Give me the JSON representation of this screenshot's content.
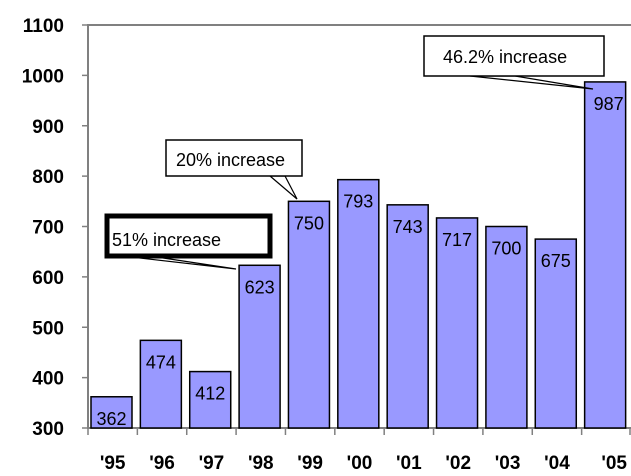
{
  "chart_data": {
    "type": "bar",
    "categories": [
      "'95",
      "'96",
      "'97",
      "'98",
      "'99",
      "'00",
      "'01",
      "'02",
      "'03",
      "'04",
      "'05"
    ],
    "values": [
      362,
      474,
      412,
      623,
      750,
      793,
      743,
      717,
      700,
      675,
      987
    ],
    "data_labels": [
      "362",
      "474",
      "412",
      "623",
      "750",
      "793",
      "743",
      "717",
      "700",
      "675",
      "987"
    ],
    "yticks": [
      "300",
      "400",
      "500",
      "600",
      "700",
      "800",
      "900",
      "1000",
      "1100"
    ],
    "ylim": [
      300,
      1100
    ],
    "grid": false,
    "colors": {
      "bar_fill": "#9999ff",
      "bar_stroke": "#000000",
      "axis": "#808080"
    },
    "annotations": [
      {
        "text": "51% increase",
        "target_category": "'98"
      },
      {
        "text": "20% increase",
        "target_category": "'99"
      },
      {
        "text": "46.2% increase",
        "target_category": "'05"
      }
    ]
  }
}
